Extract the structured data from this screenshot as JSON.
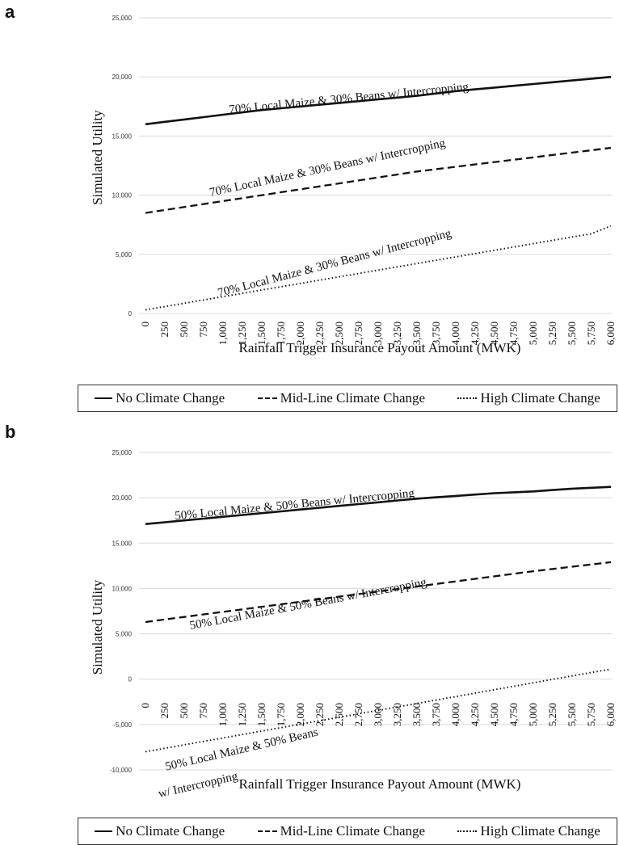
{
  "panels": [
    {
      "letter": "a"
    },
    {
      "letter": "b"
    }
  ],
  "legend": [
    {
      "label": "No Climate Change",
      "style": "solid"
    },
    {
      "label": "Mid-Line Climate Change",
      "style": "dashed"
    },
    {
      "label": "High Climate Change",
      "style": "dotted"
    }
  ],
  "chart_data": [
    {
      "type": "line",
      "title": "",
      "xlabel": "Rainfall Trigger Insurance Payout Amount (MWK)",
      "ylabel": "Simulated Utility",
      "x": [
        0,
        250,
        500,
        750,
        1000,
        1250,
        1500,
        1750,
        2000,
        2250,
        2500,
        2750,
        3000,
        3250,
        3500,
        3750,
        4000,
        4250,
        4500,
        4750,
        5000,
        5250,
        5500,
        5750,
        6000
      ],
      "x_tick_labels": [
        "0",
        "250",
        "500",
        "750",
        "1,000",
        "1,250",
        "1,500",
        "1,750",
        "2,000",
        "2,250",
        "2,500",
        "2,750",
        "3,000",
        "3,250",
        "3,500",
        "3,750",
        "4,000",
        "4,250",
        "4,500",
        "4,750",
        "5,000",
        "5,250",
        "5,500",
        "5,750",
        "6,000"
      ],
      "ylim": [
        0,
        25000
      ],
      "y_ticks": [
        0,
        5000,
        10000,
        15000,
        20000,
        25000
      ],
      "y_tick_labels": [
        "0",
        "5,000",
        "10,000",
        "15,000",
        "20,000",
        "25,000"
      ],
      "grid": true,
      "series": [
        {
          "name": "No Climate Change",
          "style": "solid",
          "values": [
            16000,
            16200,
            16400,
            16600,
            16800,
            17000,
            17200,
            17350,
            17500,
            17650,
            17800,
            17950,
            18100,
            18250,
            18400,
            18600,
            18800,
            18950,
            19100,
            19250,
            19400,
            19550,
            19700,
            19850,
            20000
          ]
        },
        {
          "name": "Mid-Line Climate Change",
          "style": "dashed",
          "values": [
            8500,
            8750,
            9000,
            9250,
            9500,
            9750,
            10000,
            10250,
            10500,
            10750,
            11000,
            11250,
            11500,
            11750,
            12000,
            12200,
            12400,
            12600,
            12800,
            13000,
            13200,
            13400,
            13600,
            13800,
            14000
          ]
        },
        {
          "name": "High Climate Change",
          "style": "dotted",
          "values": [
            300,
            580,
            860,
            1140,
            1420,
            1700,
            1980,
            2260,
            2540,
            2820,
            3100,
            3380,
            3660,
            3940,
            4220,
            4500,
            4780,
            5060,
            5340,
            5620,
            5900,
            6180,
            6460,
            6740,
            7400
          ]
        }
      ],
      "annotations": [
        {
          "text": "70% Local Maize & 30%  Beans w/ Intercropping",
          "near_series": "No Climate Change"
        },
        {
          "text": "70% Local Maize & 30%  Beans w/ Intercropping",
          "near_series": "Mid-Line Climate Change"
        },
        {
          "text": "70% Local Maize & 30%  Beans w/ Intercropping",
          "near_series": "High Climate Change"
        }
      ]
    },
    {
      "type": "line",
      "title": "",
      "xlabel": "Rainfall Trigger Insurance Payout Amount (MWK)",
      "ylabel": "Simulated Utility",
      "x": [
        0,
        250,
        500,
        750,
        1000,
        1250,
        1500,
        1750,
        2000,
        2250,
        2500,
        2750,
        3000,
        3250,
        3500,
        3750,
        4000,
        4250,
        4500,
        4750,
        5000,
        5250,
        5500,
        5750,
        6000
      ],
      "x_tick_labels": [
        "0",
        "250",
        "500",
        "750",
        "1,000",
        "1,250",
        "1,500",
        "1,750",
        "2,000",
        "2,250",
        "2,500",
        "2,750",
        "3,000",
        "3,250",
        "3,500",
        "3,750",
        "4,000",
        "4,250",
        "4,500",
        "4,750",
        "5,000",
        "5,250",
        "5,500",
        "5,750",
        "6,000"
      ],
      "ylim": [
        -10000,
        25000
      ],
      "y_ticks": [
        -10000,
        -5000,
        0,
        5000,
        10000,
        15000,
        20000,
        25000
      ],
      "y_tick_labels": [
        "-10,000",
        "-5,000",
        "0",
        "5,000",
        "10,000",
        "15,000",
        "20,000",
        "25,000"
      ],
      "grid": true,
      "series": [
        {
          "name": "No Climate Change",
          "style": "solid",
          "values": [
            17100,
            17300,
            17500,
            17700,
            17900,
            18100,
            18300,
            18500,
            18700,
            18900,
            19100,
            19300,
            19500,
            19700,
            19900,
            20050,
            20200,
            20350,
            20500,
            20600,
            20700,
            20850,
            21000,
            21100,
            21200
          ]
        },
        {
          "name": "Mid-Line Climate Change",
          "style": "dashed",
          "values": [
            6300,
            6580,
            6860,
            7140,
            7420,
            7700,
            7980,
            8260,
            8540,
            8820,
            9100,
            9380,
            9660,
            9940,
            10220,
            10500,
            10780,
            11060,
            11340,
            11620,
            11900,
            12150,
            12400,
            12650,
            12900
          ]
        },
        {
          "name": "High Climate Change",
          "style": "dotted",
          "values": [
            -8000,
            -7620,
            -7240,
            -6860,
            -6480,
            -6100,
            -5720,
            -5340,
            -4960,
            -4580,
            -4200,
            -3820,
            -3440,
            -3060,
            -2680,
            -2300,
            -1920,
            -1540,
            -1160,
            -780,
            -400,
            -20,
            360,
            740,
            1100
          ]
        }
      ],
      "annotations": [
        {
          "text": "50%  Local Maize & 50%  Beans w/ Intercropping",
          "near_series": "No Climate Change"
        },
        {
          "text": "50%  Local Maize & 50%  Beans w/ Intercropping",
          "near_series": "Mid-Line Climate Change"
        },
        {
          "text": "50%  Local Maize & 50%  Beans",
          "near_series": "High Climate Change"
        },
        {
          "text": "w/ Intercropping",
          "near_series": "High Climate Change"
        }
      ]
    }
  ]
}
